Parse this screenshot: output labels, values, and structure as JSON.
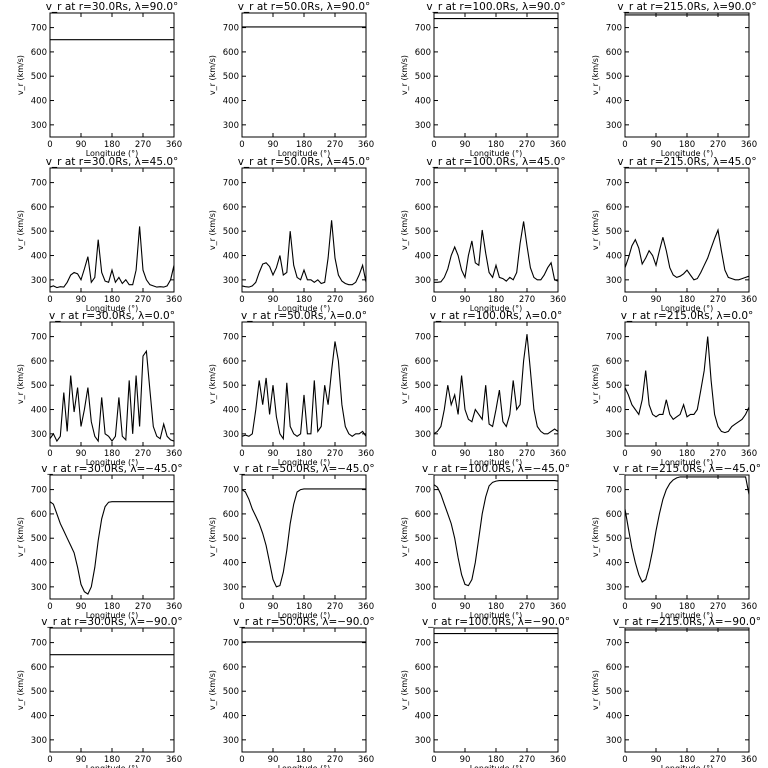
{
  "chart_data": {
    "type": "line",
    "layout": {
      "rows": 5,
      "cols": 4
    },
    "xlabel": "Longitude  (°)",
    "ylabel": "v_r (km/s)",
    "xlim": [
      0,
      360
    ],
    "ylim": [
      250,
      760
    ],
    "xticks": [
      0,
      90,
      180,
      270,
      360
    ],
    "yticks": [
      300,
      400,
      500,
      600,
      700
    ],
    "grid": false,
    "panels": [
      {
        "title": "v_r at r=30.0Rs,  λ=90.0°",
        "x": [
          0,
          360
        ],
        "y": [
          650,
          650
        ]
      },
      {
        "title": "v_r at r=50.0Rs,  λ=90.0°",
        "x": [
          0,
          360
        ],
        "y": [
          703,
          703
        ]
      },
      {
        "title": "v_r at r=100.0Rs,  λ=90.0°",
        "x": [
          0,
          360
        ],
        "y": [
          737,
          737
        ]
      },
      {
        "title": "v_r at r=215.0Rs,  λ=90.0°",
        "x": [
          0,
          360
        ],
        "y": [
          752,
          752
        ]
      },
      {
        "title": "v_r at r=30.0Rs,  λ=45.0°",
        "x": [
          0,
          10,
          20,
          30,
          40,
          50,
          60,
          70,
          80,
          90,
          100,
          110,
          120,
          130,
          140,
          150,
          160,
          170,
          180,
          190,
          200,
          210,
          220,
          230,
          240,
          250,
          260,
          270,
          280,
          290,
          300,
          310,
          320,
          330,
          340,
          350,
          360
        ],
        "y": [
          270,
          275,
          268,
          272,
          270,
          290,
          320,
          330,
          325,
          300,
          345,
          395,
          290,
          310,
          465,
          330,
          295,
          290,
          340,
          290,
          310,
          285,
          300,
          280,
          280,
          340,
          520,
          340,
          300,
          280,
          275,
          270,
          272,
          270,
          275,
          300,
          360
        ]
      },
      {
        "title": "v_r at r=50.0Rs,  λ=45.0°",
        "x": [
          0,
          10,
          20,
          30,
          40,
          50,
          60,
          70,
          80,
          90,
          100,
          110,
          120,
          130,
          140,
          150,
          160,
          170,
          180,
          190,
          200,
          210,
          220,
          230,
          240,
          250,
          260,
          270,
          280,
          290,
          300,
          310,
          320,
          330,
          340,
          350,
          360
        ],
        "y": [
          275,
          272,
          270,
          275,
          290,
          330,
          365,
          370,
          355,
          320,
          350,
          400,
          320,
          330,
          500,
          360,
          310,
          300,
          340,
          300,
          300,
          290,
          300,
          285,
          290,
          390,
          545,
          390,
          320,
          295,
          285,
          280,
          280,
          290,
          320,
          360,
          290
        ]
      },
      {
        "title": "v_r at r=100.0Rs,  λ=45.0°",
        "x": [
          0,
          10,
          20,
          30,
          40,
          50,
          60,
          70,
          80,
          90,
          100,
          110,
          120,
          130,
          140,
          150,
          160,
          170,
          180,
          190,
          200,
          210,
          220,
          230,
          240,
          250,
          260,
          270,
          280,
          290,
          300,
          310,
          320,
          330,
          340,
          350,
          360
        ],
        "y": [
          290,
          290,
          292,
          310,
          345,
          400,
          435,
          400,
          340,
          310,
          400,
          460,
          370,
          360,
          505,
          410,
          330,
          310,
          360,
          310,
          305,
          295,
          310,
          300,
          330,
          450,
          540,
          440,
          350,
          310,
          300,
          300,
          320,
          350,
          370,
          300,
          295
        ]
      },
      {
        "title": "v_r at r=215.0Rs,  λ=45.0°",
        "x": [
          0,
          10,
          20,
          30,
          40,
          50,
          60,
          70,
          80,
          90,
          100,
          110,
          120,
          130,
          140,
          150,
          160,
          170,
          180,
          190,
          200,
          210,
          220,
          230,
          240,
          250,
          260,
          270,
          280,
          290,
          300,
          310,
          320,
          330,
          340,
          350,
          360
        ],
        "y": [
          350,
          390,
          440,
          465,
          430,
          365,
          390,
          420,
          400,
          360,
          420,
          475,
          420,
          350,
          320,
          310,
          315,
          325,
          340,
          320,
          300,
          305,
          330,
          360,
          390,
          430,
          470,
          505,
          420,
          340,
          310,
          305,
          300,
          300,
          305,
          310,
          315
        ]
      },
      {
        "title": "v_r at r=30.0Rs,  λ=0.0°",
        "x": [
          0,
          10,
          20,
          30,
          40,
          50,
          60,
          70,
          80,
          90,
          100,
          110,
          120,
          130,
          140,
          150,
          160,
          170,
          180,
          190,
          200,
          210,
          220,
          230,
          240,
          250,
          260,
          270,
          280,
          290,
          300,
          310,
          320,
          330,
          340,
          350,
          360
        ],
        "y": [
          280,
          300,
          270,
          290,
          470,
          310,
          540,
          390,
          490,
          330,
          400,
          490,
          350,
          290,
          270,
          450,
          300,
          290,
          270,
          290,
          450,
          290,
          275,
          520,
          300,
          540,
          330,
          620,
          640,
          480,
          330,
          290,
          280,
          340,
          290,
          275,
          270
        ]
      },
      {
        "title": "v_r at r=50.0Rs,  λ=0.0°",
        "x": [
          0,
          10,
          20,
          30,
          40,
          50,
          60,
          70,
          80,
          90,
          100,
          110,
          120,
          130,
          140,
          150,
          160,
          170,
          180,
          190,
          200,
          210,
          220,
          230,
          240,
          250,
          260,
          270,
          280,
          290,
          300,
          310,
          320,
          330,
          340,
          350,
          360
        ],
        "y": [
          290,
          295,
          290,
          300,
          400,
          520,
          420,
          530,
          380,
          500,
          370,
          300,
          280,
          510,
          330,
          300,
          290,
          300,
          460,
          300,
          300,
          520,
          310,
          330,
          500,
          420,
          560,
          680,
          600,
          420,
          330,
          300,
          290,
          300,
          300,
          310,
          290
        ]
      },
      {
        "title": "v_r at r=100.0Rs,  λ=0.0°",
        "x": [
          0,
          10,
          20,
          30,
          40,
          50,
          60,
          70,
          80,
          90,
          100,
          110,
          120,
          130,
          140,
          150,
          160,
          170,
          180,
          190,
          200,
          210,
          220,
          230,
          240,
          250,
          260,
          270,
          280,
          290,
          300,
          310,
          320,
          330,
          340,
          350,
          360
        ],
        "y": [
          300,
          310,
          330,
          400,
          500,
          420,
          460,
          380,
          540,
          400,
          360,
          350,
          400,
          380,
          360,
          500,
          340,
          330,
          400,
          480,
          350,
          330,
          380,
          520,
          400,
          420,
          600,
          710,
          560,
          400,
          330,
          310,
          300,
          300,
          310,
          320,
          310
        ]
      },
      {
        "title": "v_r at r=215.0Rs,  λ=0.0°",
        "x": [
          0,
          10,
          20,
          30,
          40,
          50,
          60,
          70,
          80,
          90,
          100,
          110,
          120,
          130,
          140,
          150,
          160,
          170,
          180,
          190,
          200,
          210,
          220,
          230,
          240,
          250,
          260,
          270,
          280,
          290,
          300,
          310,
          320,
          330,
          340,
          350,
          360
        ],
        "y": [
          490,
          460,
          420,
          400,
          380,
          440,
          560,
          420,
          380,
          370,
          380,
          380,
          440,
          380,
          360,
          370,
          380,
          420,
          370,
          380,
          380,
          400,
          480,
          560,
          700,
          520,
          380,
          330,
          310,
          305,
          310,
          330,
          340,
          350,
          360,
          380,
          410
        ]
      },
      {
        "title": "v_r at r=30.0Rs,  λ=−45.0°",
        "x": [
          0,
          10,
          20,
          30,
          40,
          50,
          60,
          70,
          80,
          90,
          100,
          110,
          120,
          130,
          140,
          150,
          160,
          170,
          180,
          190,
          200,
          210,
          220,
          230,
          240,
          250,
          260,
          270,
          280,
          290,
          300,
          310,
          320,
          330,
          340,
          350,
          360
        ],
        "y": [
          650,
          640,
          600,
          560,
          530,
          500,
          470,
          440,
          380,
          310,
          280,
          270,
          300,
          380,
          490,
          580,
          630,
          648,
          650,
          650,
          650,
          650,
          650,
          650,
          650,
          650,
          650,
          650,
          650,
          650,
          650,
          650,
          650,
          650,
          650,
          650,
          650
        ]
      },
      {
        "title": "v_r at r=50.0Rs,  λ=−45.0°",
        "x": [
          0,
          10,
          20,
          30,
          40,
          50,
          60,
          70,
          80,
          90,
          100,
          110,
          120,
          130,
          140,
          150,
          160,
          170,
          180,
          190,
          200,
          210,
          220,
          230,
          240,
          250,
          260,
          270,
          280,
          290,
          300,
          310,
          320,
          330,
          340,
          350,
          360
        ],
        "y": [
          700,
          690,
          660,
          620,
          590,
          560,
          520,
          470,
          400,
          330,
          300,
          305,
          360,
          450,
          560,
          640,
          690,
          700,
          703,
          703,
          703,
          703,
          703,
          703,
          703,
          703,
          703,
          703,
          703,
          703,
          703,
          703,
          703,
          703,
          703,
          703,
          703
        ]
      },
      {
        "title": "v_r at r=100.0Rs,  λ=−45.0°",
        "x": [
          0,
          10,
          20,
          30,
          40,
          50,
          60,
          70,
          80,
          90,
          100,
          110,
          120,
          130,
          140,
          150,
          160,
          170,
          180,
          190,
          200,
          210,
          220,
          230,
          240,
          250,
          260,
          270,
          280,
          290,
          300,
          310,
          320,
          330,
          340,
          350,
          360
        ],
        "y": [
          720,
          710,
          680,
          640,
          600,
          560,
          500,
          420,
          350,
          310,
          305,
          330,
          400,
          500,
          600,
          670,
          715,
          730,
          735,
          737,
          737,
          737,
          737,
          737,
          737,
          737,
          737,
          737,
          737,
          737,
          737,
          737,
          737,
          737,
          737,
          737,
          735
        ]
      },
      {
        "title": "v_r at r=215.0Rs,  λ=−45.0°",
        "x": [
          0,
          10,
          20,
          30,
          40,
          50,
          60,
          70,
          80,
          90,
          100,
          110,
          120,
          130,
          140,
          150,
          160,
          170,
          180,
          190,
          200,
          210,
          220,
          230,
          240,
          250,
          260,
          270,
          280,
          290,
          300,
          310,
          320,
          330,
          340,
          350,
          360
        ],
        "y": [
          620,
          540,
          460,
          400,
          350,
          320,
          330,
          380,
          450,
          530,
          600,
          660,
          700,
          725,
          740,
          748,
          752,
          752,
          752,
          752,
          752,
          752,
          752,
          752,
          752,
          752,
          752,
          752,
          752,
          752,
          752,
          752,
          752,
          752,
          752,
          752,
          680
        ]
      },
      {
        "title": "v_r at r=30.0Rs,  λ=−90.0°",
        "x": [
          0,
          360
        ],
        "y": [
          650,
          650
        ]
      },
      {
        "title": "v_r at r=50.0Rs,  λ=−90.0°",
        "x": [
          0,
          360
        ],
        "y": [
          703,
          703
        ]
      },
      {
        "title": "v_r at r=100.0Rs,  λ=−90.0°",
        "x": [
          0,
          360
        ],
        "y": [
          737,
          737
        ]
      },
      {
        "title": "v_r at r=215.0Rs,  λ=−90.0°",
        "x": [
          0,
          360
        ],
        "y": [
          752,
          752
        ]
      }
    ]
  }
}
